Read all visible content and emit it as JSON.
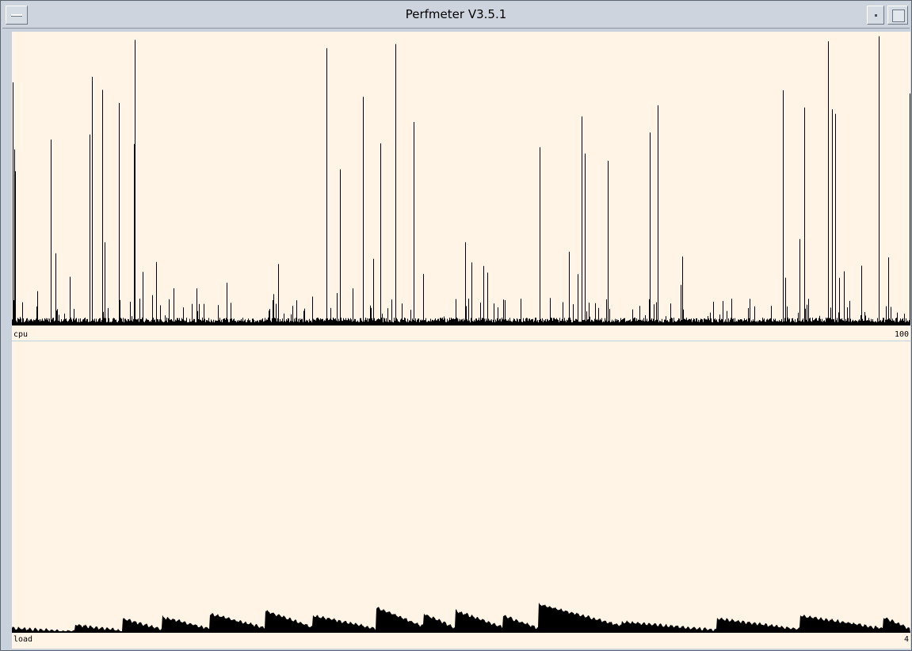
{
  "window": {
    "title": "Perfmeter V3.5.1"
  },
  "meters": {
    "cpu": {
      "label": "cpu",
      "max_label": "100"
    },
    "load": {
      "label": "load",
      "max_label": "4"
    }
  },
  "colors": {
    "background": "#fff4e6",
    "trace": "#000000"
  },
  "icons": {
    "menu": "window-menu-icon",
    "minimize": "minimize-icon",
    "maximize": "maximize-icon"
  }
}
